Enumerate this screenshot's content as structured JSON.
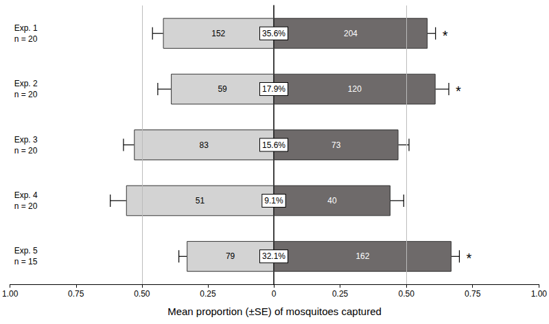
{
  "chart_data": {
    "type": "bar",
    "orientation": "horizontal",
    "grid": false,
    "categories": [
      "Exp. 1\nn = 20",
      "Exp. 2\nn = 20",
      "Exp. 3\nn = 20",
      "Exp. 4\nn = 20",
      "Exp. 5\nn = 15"
    ],
    "xlabel": "Mean proportion (±SE) of mosquitoes captured",
    "xlim": [
      0,
      1
    ],
    "xticks": [
      0,
      0.25,
      {
        "value": 0.5,
        "label": "0.50"
      },
      0.75,
      {
        "value": 1,
        "label": "1.00"
      }
    ],
    "reference_lines": [
      0.5
    ],
    "series": [
      {
        "color": "#d3d3d3",
        "values": [
          0.42,
          0.39,
          0.53,
          0.56,
          0.33
        ],
        "se": [
          0.04,
          0.05,
          0.04,
          0.06,
          0.03
        ],
        "counts": [
          152,
          59,
          83,
          51,
          79
        ]
      },
      {
        "color": "#6e6a6a",
        "values": [
          0.58,
          0.61,
          0.47,
          0.44,
          0.67
        ],
        "se": [
          0.03,
          0.05,
          0.04,
          0.05,
          0.03
        ],
        "counts": [
          204,
          120,
          73,
          40,
          162
        ]
      }
    ],
    "center_labels": [
      "35.6%",
      "17.9%",
      "15.6%",
      "9.1%",
      "32.1%"
    ],
    "annotations": [
      "*",
      "*",
      null,
      null,
      "*"
    ]
  }
}
